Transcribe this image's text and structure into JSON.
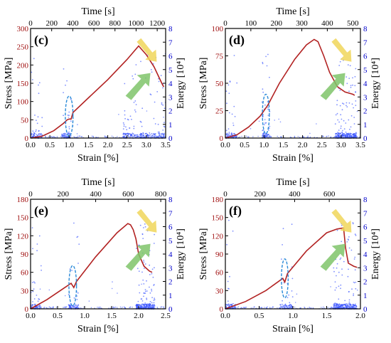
{
  "chart_data": [
    {
      "type": "scatter",
      "panel_label": "(c)",
      "xlabel": "Strain [%]",
      "ylabel": "Stress [MPa]",
      "top_xlabel": "Time [s]",
      "right_ylabel": "Energy [10⁴]",
      "xlim": [
        0,
        3.5
      ],
      "ylim": [
        0,
        300
      ],
      "top_xlim": [
        0,
        1280
      ],
      "right_ylim": [
        0,
        8
      ],
      "x_ticks": [
        "0.0",
        "0.5",
        "1.0",
        "1.5",
        "2.0",
        "2.5",
        "3.0",
        "3.5"
      ],
      "y_ticks": [
        "0",
        "50",
        "100",
        "150",
        "200",
        "250",
        "300"
      ],
      "top_ticks": [
        "0",
        "200",
        "400",
        "600",
        "800",
        "1000",
        "1200"
      ],
      "right_ticks": [
        "0",
        "1",
        "2",
        "3",
        "4",
        "5",
        "6",
        "7",
        "8"
      ],
      "stress_curve": {
        "x": [
          0.0,
          0.3,
          0.6,
          0.85,
          0.95,
          1.0,
          1.05,
          1.1,
          1.5,
          2.0,
          2.5,
          2.8,
          3.0,
          3.2,
          3.4,
          3.45
        ],
        "y": [
          0,
          5,
          20,
          40,
          50,
          52,
          52,
          70,
          110,
          160,
          215,
          252,
          228,
          195,
          150,
          140
        ]
      },
      "ellipse": {
        "cx": 1.0,
        "cy": 60,
        "rx": 0.1,
        "ry": 55
      },
      "energy_events": {
        "dense_ranges": [
          [
            0.0,
            0.3
          ],
          [
            0.8,
            1.05
          ],
          [
            2.4,
            3.5
          ]
        ],
        "peak_energy": 7.0
      }
    },
    {
      "type": "scatter",
      "panel_label": "(d)",
      "xlabel": "Strain [%]",
      "ylabel": "Stress [MPa]",
      "top_xlabel": "Time [s]",
      "right_ylabel": "Energy [10⁴]",
      "xlim": [
        0,
        3.5
      ],
      "ylim": [
        0,
        100
      ],
      "top_xlim": [
        0,
        530
      ],
      "right_ylim": [
        0,
        8
      ],
      "x_ticks": [
        "0.0",
        "0.5",
        "1.0",
        "1.5",
        "2.0",
        "2.5",
        "3.0",
        "3.5"
      ],
      "y_ticks": [
        "0",
        "25",
        "50",
        "75",
        "100"
      ],
      "top_ticks": [
        "0",
        "100",
        "200",
        "300",
        "400",
        "500"
      ],
      "right_ticks": [
        "0",
        "1",
        "2",
        "3",
        "4",
        "5",
        "6",
        "7",
        "8"
      ],
      "stress_curve": {
        "x": [
          0.0,
          0.3,
          0.6,
          0.9,
          1.1,
          1.4,
          1.8,
          2.1,
          2.3,
          2.4,
          2.55,
          2.7,
          2.9,
          3.1,
          3.3,
          3.35
        ],
        "y": [
          0,
          3,
          10,
          20,
          30,
          50,
          72,
          85,
          90,
          88,
          75,
          60,
          47,
          42,
          40,
          39
        ]
      },
      "ellipse": {
        "cx": 1.05,
        "cy": 22,
        "rx": 0.09,
        "ry": 18
      },
      "energy_events": {
        "dense_ranges": [
          [
            0.0,
            0.3
          ],
          [
            0.95,
            1.15
          ],
          [
            2.85,
            3.4
          ]
        ],
        "peak_energy": 6.5
      }
    },
    {
      "type": "scatter",
      "panel_label": "(e)",
      "xlabel": "Strain [%]",
      "ylabel": "Stress [MPa]",
      "top_xlabel": "Time [s]",
      "right_ylabel": "Energy [10⁴]",
      "xlim": [
        0,
        2.5
      ],
      "ylim": [
        0,
        180
      ],
      "top_xlim": [
        0,
        830
      ],
      "right_ylim": [
        0,
        8
      ],
      "x_ticks": [
        "0.0",
        "0.5",
        "1.0",
        "1.5",
        "2.0",
        "2.5"
      ],
      "y_ticks": [
        "0",
        "30",
        "60",
        "90",
        "120",
        "150",
        "180"
      ],
      "top_ticks": [
        "0",
        "200",
        "400",
        "600",
        "800"
      ],
      "right_ticks": [
        "0",
        "1",
        "2",
        "3",
        "4",
        "5",
        "6",
        "7",
        "8"
      ],
      "stress_curve": {
        "x": [
          0.0,
          0.3,
          0.6,
          0.75,
          0.8,
          0.85,
          1.2,
          1.6,
          1.8,
          1.85,
          1.9,
          1.95,
          2.0,
          2.1,
          2.2,
          2.25
        ],
        "y": [
          0,
          15,
          33,
          42,
          35,
          45,
          85,
          125,
          140,
          138,
          130,
          115,
          90,
          70,
          62,
          60
        ]
      },
      "ellipse": {
        "cx": 0.78,
        "cy": 38,
        "rx": 0.07,
        "ry": 33
      },
      "energy_events": {
        "dense_ranges": [
          [
            0.0,
            0.2
          ],
          [
            0.7,
            0.9
          ],
          [
            1.95,
            2.3
          ]
        ],
        "peak_energy": 6.5
      }
    },
    {
      "type": "scatter",
      "panel_label": "(f)",
      "xlabel": "Strain [%]",
      "ylabel": "Stress [MPa]",
      "top_xlabel": "Time [s]",
      "right_ylabel": "Energy [10⁴]",
      "xlim": [
        0,
        2.0
      ],
      "ylim": [
        0,
        180
      ],
      "top_xlim": [
        0,
        780
      ],
      "right_ylim": [
        0,
        8
      ],
      "x_ticks": [
        "0.0",
        "0.5",
        "1.0",
        "1.5",
        "2.0"
      ],
      "y_ticks": [
        "0",
        "30",
        "60",
        "90",
        "120",
        "150",
        "180"
      ],
      "top_ticks": [
        "0",
        "200",
        "400",
        "600"
      ],
      "right_ticks": [
        "0",
        "1",
        "2",
        "3",
        "4",
        "5",
        "6",
        "7",
        "8"
      ],
      "stress_curve": {
        "x": [
          0.0,
          0.3,
          0.6,
          0.85,
          0.88,
          0.92,
          1.2,
          1.5,
          1.65,
          1.75,
          1.78,
          1.82,
          1.9,
          1.95
        ],
        "y": [
          0,
          12,
          30,
          50,
          44,
          58,
          95,
          125,
          131,
          133,
          100,
          75,
          70,
          68
        ]
      },
      "ellipse": {
        "cx": 0.88,
        "cy": 50,
        "rx": 0.05,
        "ry": 32
      },
      "energy_events": {
        "dense_ranges": [
          [
            0.0,
            0.15
          ],
          [
            0.8,
            1.0
          ],
          [
            1.6,
            1.95
          ]
        ],
        "peak_energy": 6.5
      }
    }
  ],
  "colors": {
    "stress_line": "#b22222",
    "stress_axis": "#000000",
    "energy_axis": "#0000cc",
    "energy_points": "#3a55ff",
    "ellipse": "#2a8ad8",
    "arrow_up": "#7fc46a",
    "arrow_down": "#f0d65a"
  }
}
